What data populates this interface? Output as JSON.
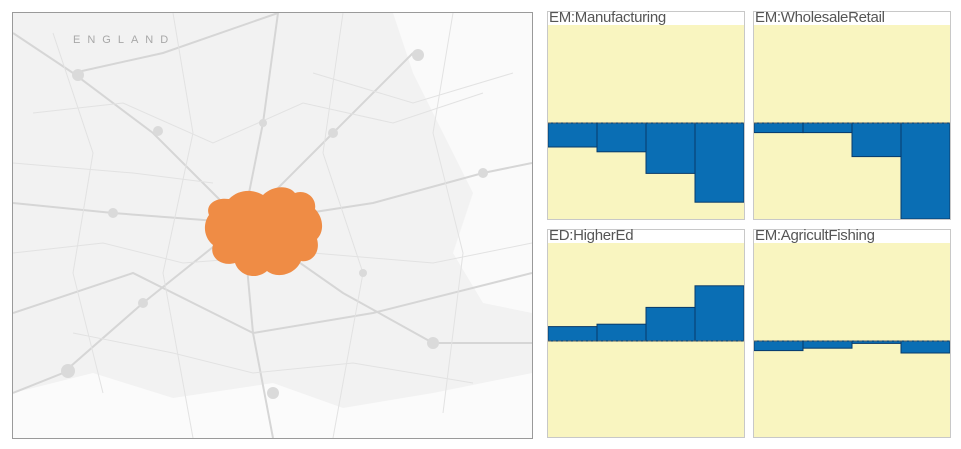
{
  "colors": {
    "region_fill": "#ef8c45",
    "panel_background": "#f9f5c0",
    "bar_fill": "#0a6eb4",
    "bar_stroke": "#083a6a",
    "baseline": "#5a5a5a"
  },
  "map": {
    "country_label": "ENGLAND"
  },
  "panels": [
    {
      "title": "EM:Manufacturing",
      "values": [
        -0.1,
        -0.12,
        -0.21,
        -0.33
      ]
    },
    {
      "title": "EM:WholesaleRetail",
      "values": [
        -0.04,
        -0.04,
        -0.14,
        -0.4
      ]
    },
    {
      "title": "ED:HigherEd",
      "values": [
        0.06,
        0.07,
        0.14,
        0.23
      ]
    },
    {
      "title": "EM:AgricultFishing",
      "values": [
        -0.04,
        -0.03,
        -0.01,
        -0.05
      ]
    }
  ]
}
